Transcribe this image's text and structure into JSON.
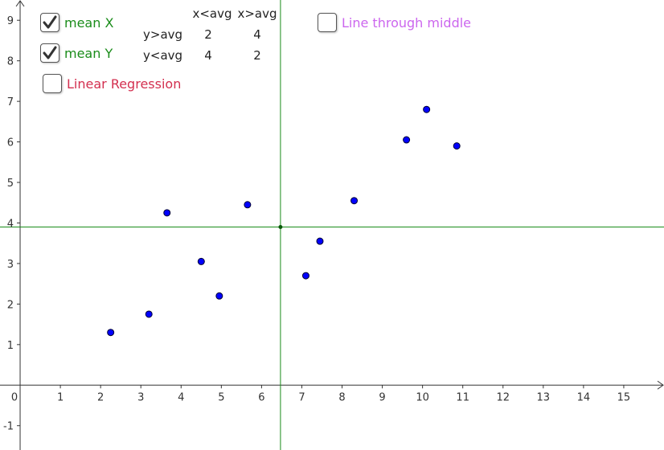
{
  "chart_data": {
    "type": "scatter",
    "title": "",
    "xlabel": "",
    "ylabel": "",
    "xlim": [
      -0.5,
      16
    ],
    "ylim": [
      -1.6,
      9.5
    ],
    "x_ticks": [
      0,
      1,
      2,
      3,
      4,
      5,
      6,
      7,
      8,
      9,
      10,
      11,
      12,
      13,
      14,
      15
    ],
    "y_ticks": [
      -1,
      1,
      2,
      3,
      4,
      5,
      6,
      7,
      8,
      9
    ],
    "grid": false,
    "points": [
      {
        "x": 2.25,
        "y": 1.3
      },
      {
        "x": 3.2,
        "y": 1.75
      },
      {
        "x": 3.65,
        "y": 4.25
      },
      {
        "x": 4.5,
        "y": 3.05
      },
      {
        "x": 4.95,
        "y": 2.2
      },
      {
        "x": 5.65,
        "y": 4.45
      },
      {
        "x": 7.1,
        "y": 2.7
      },
      {
        "x": 7.45,
        "y": 3.55
      },
      {
        "x": 8.3,
        "y": 4.55
      },
      {
        "x": 9.6,
        "y": 6.05
      },
      {
        "x": 10.1,
        "y": 6.8
      },
      {
        "x": 10.85,
        "y": 5.9
      }
    ],
    "mean_x": 6.47,
    "mean_y": 3.9
  },
  "controls": {
    "mean_x": {
      "label": "mean X",
      "checked": true
    },
    "mean_y": {
      "label": "mean Y",
      "checked": true
    },
    "linear_regression": {
      "label": "Linear Regression",
      "checked": false
    },
    "line_through_middle": {
      "label": "Line through middle",
      "checked": false
    }
  },
  "count_table": {
    "headers": [
      "x<avg",
      "x>avg"
    ],
    "rows": [
      {
        "label": "y>avg",
        "values": [
          "2",
          "4"
        ]
      },
      {
        "label": "y<avg",
        "values": [
          "4",
          "2"
        ]
      }
    ]
  },
  "colors": {
    "axis": "#333333",
    "mean_line": "#1a8c1a",
    "point_fill": "#0000ff",
    "point_stroke": "#000033",
    "mean_label": "#1a8c1a",
    "regression_label": "#d32f4f",
    "middle_label": "#cc66ee"
  }
}
